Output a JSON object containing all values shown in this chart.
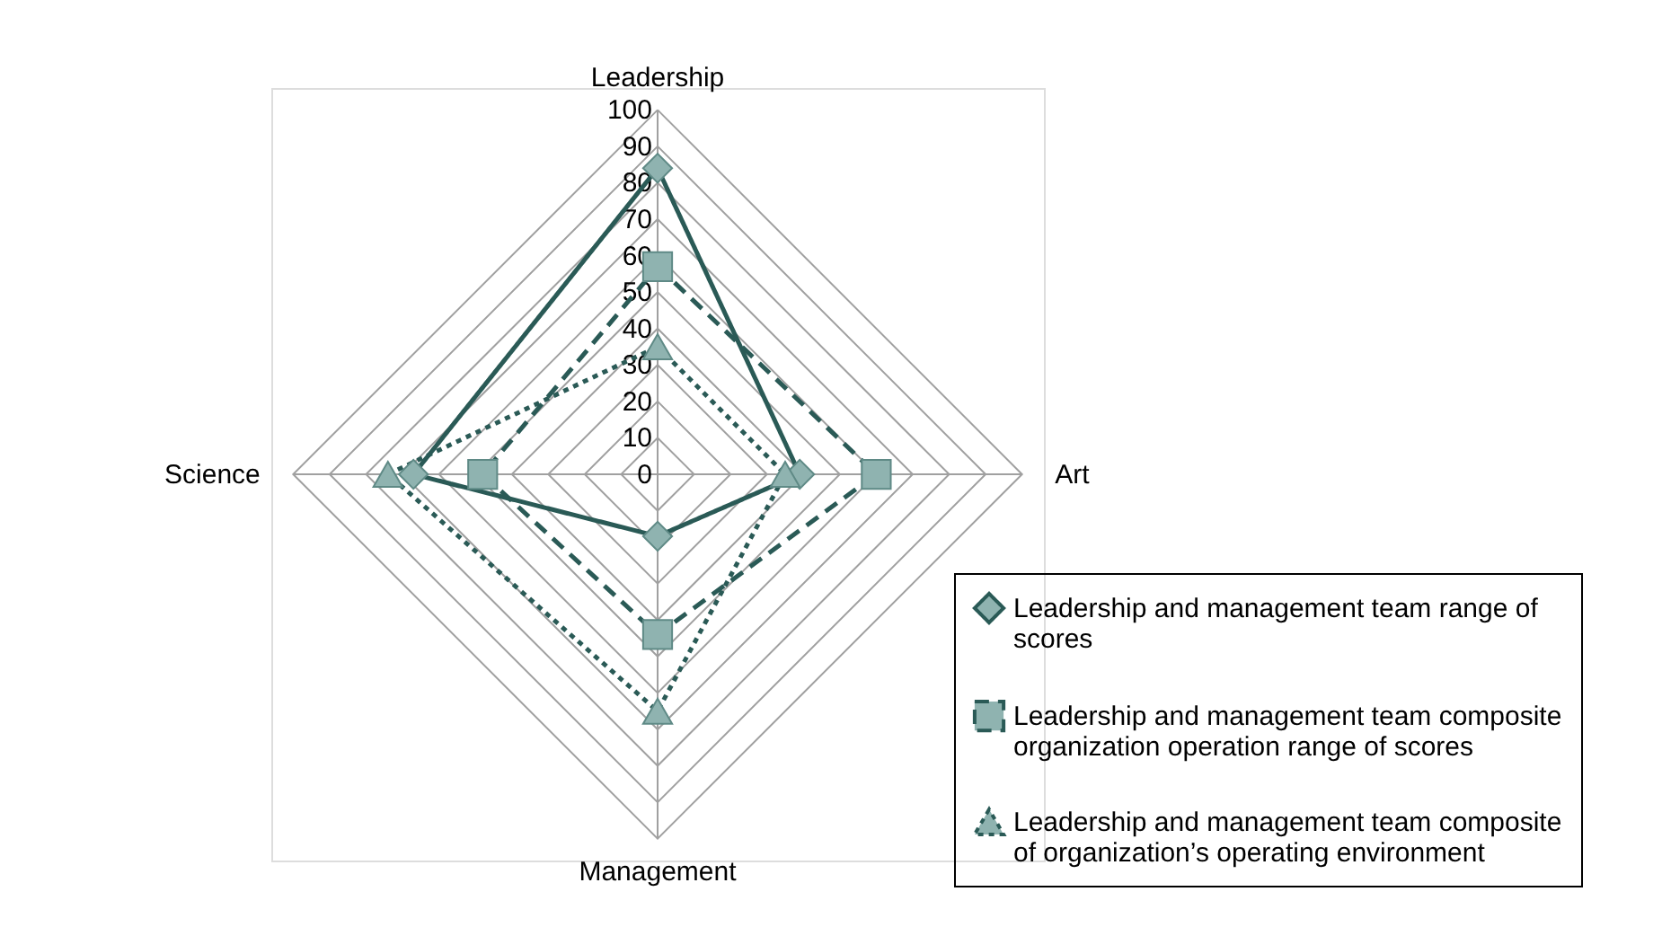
{
  "chart_data": {
    "type": "radar",
    "categories": [
      "Leadership",
      "Art",
      "Management",
      "Science"
    ],
    "ylim": [
      0,
      100
    ],
    "yticks": [
      0,
      10,
      20,
      30,
      40,
      50,
      60,
      70,
      80,
      90,
      100
    ],
    "grid": true,
    "legend": "bottom right",
    "series": [
      {
        "name": "Leadership and management team range of scores",
        "color": "#2a5a56",
        "marker": "diamond",
        "line_style": "solid",
        "values": [
          84,
          39,
          17,
          67
        ]
      },
      {
        "name": "Leadership and management team composite organization operation range of scores",
        "color": "#2a5a56",
        "marker": "square",
        "line_style": "dashed",
        "values": [
          57,
          60,
          44,
          48
        ]
      },
      {
        "name": "Leadership and management team composite of organization’s operating environment",
        "color": "#2a5a56",
        "marker": "triangle",
        "line_style": "dotted",
        "values": [
          35,
          35,
          65,
          74
        ]
      }
    ]
  }
}
